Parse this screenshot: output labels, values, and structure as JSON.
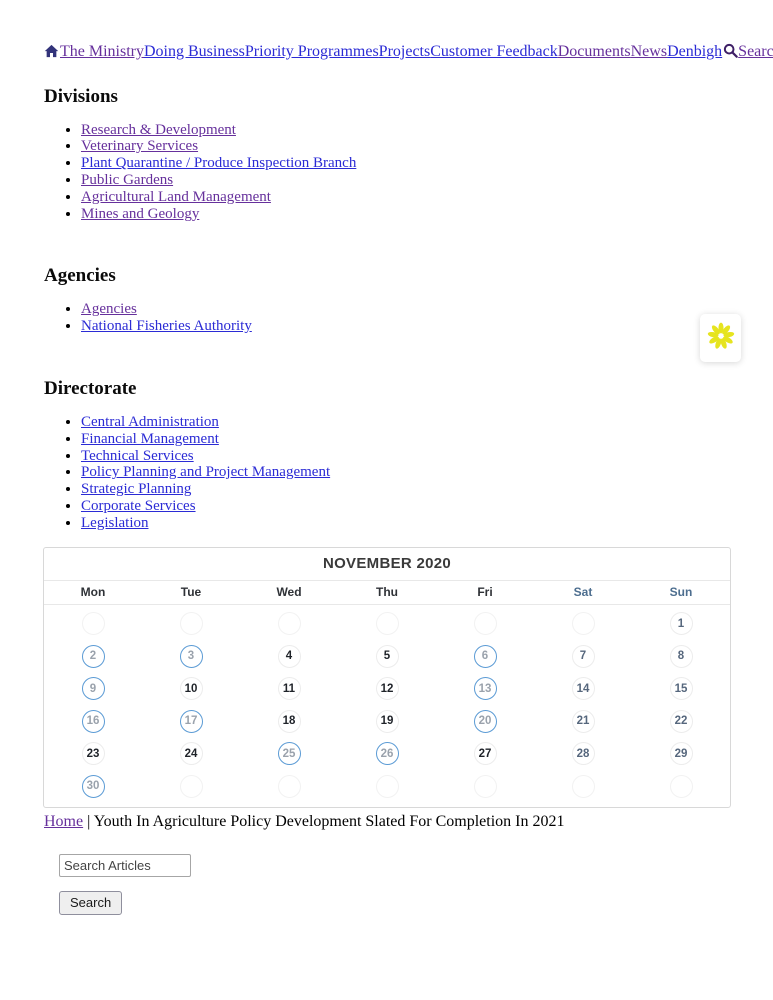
{
  "nav": {
    "items": [
      {
        "label": "The Ministry",
        "color": "purple"
      },
      {
        "label": "Doing Business",
        "color": "blue"
      },
      {
        "label": "Priority Programmes",
        "color": "blue"
      },
      {
        "label": "Projects",
        "color": "blue"
      },
      {
        "label": "Customer Feedback",
        "color": "blue"
      },
      {
        "label": "Documents",
        "color": "purple"
      },
      {
        "label": "News",
        "color": "purple"
      },
      {
        "label": "Denbigh",
        "color": "blue"
      }
    ],
    "search_label": "Search",
    "icons": {
      "home": "home-icon",
      "search": "magnifier-icon"
    }
  },
  "sections": [
    {
      "heading": "Divisions",
      "links": [
        {
          "label": "Research & Development",
          "color": "purple"
        },
        {
          "label": "Veterinary Services",
          "color": "purple"
        },
        {
          "label": "Plant Quarantine / Produce Inspection Branch",
          "color": "blue"
        },
        {
          "label": "Public Gardens",
          "color": "purple"
        },
        {
          "label": "Agricultural Land Management",
          "color": "purple"
        },
        {
          "label": "Mines and Geology",
          "color": "purple"
        }
      ]
    },
    {
      "heading": "Agencies",
      "links": [
        {
          "label": "Agencies",
          "color": "purple"
        },
        {
          "label": "National Fisheries Authority",
          "color": "blue"
        }
      ]
    },
    {
      "heading": "Directorate",
      "links": [
        {
          "label": "Central Administration",
          "color": "blue"
        },
        {
          "label": "Financial Management",
          "color": "blue"
        },
        {
          "label": "Technical Services",
          "color": "blue"
        },
        {
          "label": "Policy Planning and Project Management",
          "color": "blue"
        },
        {
          "label": "Strategic Planning",
          "color": "blue"
        },
        {
          "label": "Corporate Services",
          "color": "blue"
        },
        {
          "label": "Legislation",
          "color": "blue"
        }
      ]
    }
  ],
  "calendar": {
    "title": "NOVEMBER 2020",
    "day_headers": [
      "Mon",
      "Tue",
      "Wed",
      "Thu",
      "Fri",
      "Sat",
      "Sun"
    ],
    "weekend_columns": [
      5,
      6
    ],
    "weeks": [
      [
        null,
        null,
        null,
        null,
        null,
        null,
        1
      ],
      [
        2,
        3,
        4,
        5,
        6,
        7,
        8
      ],
      [
        9,
        10,
        11,
        12,
        13,
        14,
        15
      ],
      [
        16,
        17,
        18,
        19,
        20,
        21,
        22
      ],
      [
        23,
        24,
        25,
        26,
        27,
        28,
        29
      ],
      [
        30,
        null,
        null,
        null,
        null,
        null,
        null
      ]
    ],
    "event_days": [
      2,
      3,
      6,
      9,
      13,
      16,
      17,
      20,
      25,
      26,
      30
    ],
    "colors": {
      "event_circle": "#5b9bd5",
      "weekend_text": "#56677d",
      "weekday_text": "#1f2329"
    }
  },
  "breadcrumb": {
    "home": "Home",
    "separator": "|",
    "title": "Youth In Agriculture Policy Development Slated For Completion In 2021"
  },
  "search": {
    "input_value": "Search Articles",
    "button_label": "Search"
  },
  "floating_widget": {
    "icon": "asterisk-flower-icon",
    "color": "#e6e41f"
  },
  "colors": {
    "link_blue": "#2b2bd5",
    "link_purple": "#66309c"
  }
}
